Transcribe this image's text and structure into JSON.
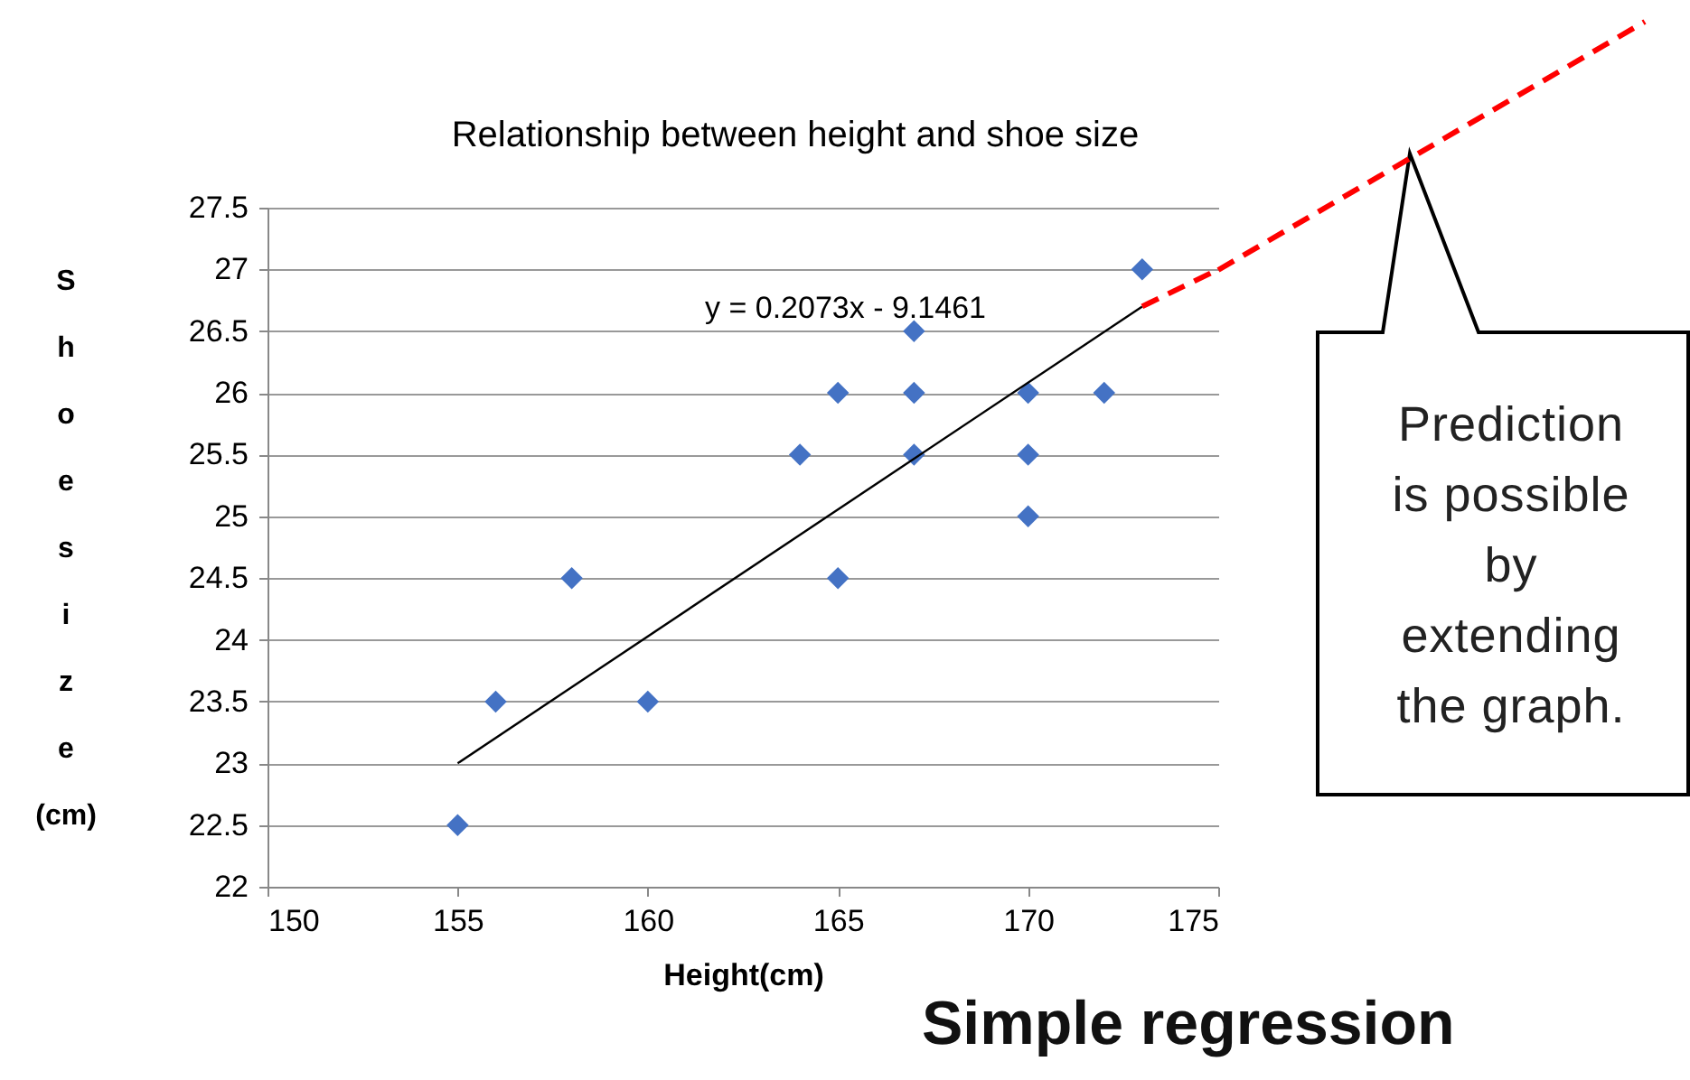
{
  "chart_data": {
    "type": "scatter",
    "title": "Relationship between height and shoe size",
    "xlabel": "Height(cm)",
    "ylabel": "Shoe size(cm)",
    "x": [
      155,
      156,
      158,
      160,
      164,
      165,
      165,
      167,
      167,
      167,
      170,
      170,
      170,
      172,
      173
    ],
    "series": [
      {
        "color": "#4472c4",
        "marker": "diamond",
        "values": [
          22.5,
          23.5,
          24.5,
          23.5,
          25.5,
          26,
          24.5,
          26.5,
          26,
          25.5,
          26,
          25.5,
          25,
          26,
          27
        ]
      },
      {
        "type": "line",
        "color": "#000000",
        "marker": "none",
        "line_style": "solid",
        "x": [
          155,
          173
        ],
        "values": [
          23.0,
          26.7
        ]
      },
      {
        "type": "line",
        "color": "#ff0000",
        "marker": "none",
        "line_style": "dashed",
        "x": [
          173,
          175
        ],
        "values": [
          26.7,
          27.0
        ]
      }
    ],
    "xlim": [
      150,
      175
    ],
    "xticks": [
      150,
      155,
      160,
      165,
      170,
      175
    ],
    "ylim": [
      22,
      27.5
    ],
    "yticks": [
      22,
      22.5,
      23,
      23.5,
      24,
      24.5,
      25,
      25.5,
      26,
      26.5,
      27,
      27.5
    ],
    "grid": "y",
    "annotations": [
      "y = 0.2073x - 9.1461",
      "Prediction is possible by extending the graph.",
      "Simple regression"
    ]
  }
}
